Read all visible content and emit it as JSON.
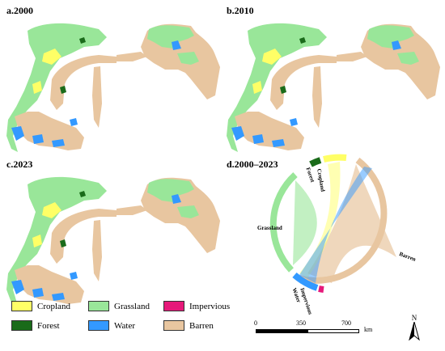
{
  "panels": [
    {
      "label": "a.2000"
    },
    {
      "label": "b.2010"
    },
    {
      "label": "c.2023"
    },
    {
      "label": "d.2000–2023"
    }
  ],
  "legend": {
    "items": [
      {
        "label": "Cropland",
        "color": "#ffff66"
      },
      {
        "label": "Grassland",
        "color": "#99e699"
      },
      {
        "label": "Impervious",
        "color": "#e6197a"
      },
      {
        "label": "Forest",
        "color": "#1a6b1a"
      },
      {
        "label": "Water",
        "color": "#3399ff"
      },
      {
        "label": "Barren",
        "color": "#e8c6a0"
      }
    ]
  },
  "scale_bar": {
    "ticks": [
      "0",
      "350",
      "700"
    ],
    "unit": "km"
  },
  "north_arrow": {
    "label": "N"
  },
  "chord": {
    "labels": [
      "Cropland",
      "Forest",
      "Grassland",
      "Water",
      "Impervious",
      "Barren"
    ]
  }
}
